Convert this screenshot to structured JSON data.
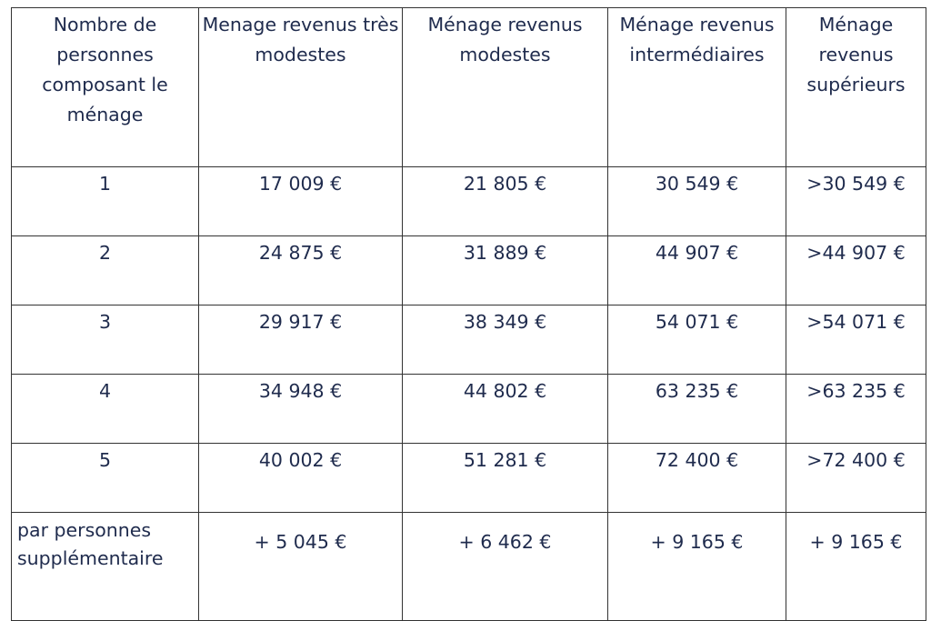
{
  "table": {
    "headers": [
      "Nombre de personnes composant le ménage",
      "Menage revenus très modestes",
      "Ménage revenus modestes",
      "Ménage revenus intermédiaires",
      "Ménage revenus supérieurs"
    ],
    "rows": [
      [
        "1",
        "17 009 €",
        "21 805 €",
        "30 549 €",
        ">30 549 €"
      ],
      [
        "2",
        "24 875 €",
        "31 889 €",
        "44 907 €",
        ">44 907 €"
      ],
      [
        "3",
        "29 917 €",
        "38 349 €",
        "54 071 €",
        ">54 071 €"
      ],
      [
        "4",
        "34 948 €",
        "44 802 €",
        "63 235 €",
        ">63 235 €"
      ],
      [
        "5",
        "40 002 €",
        "51 281 €",
        "72 400 €",
        ">72 400 €"
      ],
      [
        "par personnes supplémentaire",
        "+ 5 045 €",
        "+ 6 462 €",
        "+ 9 165 €",
        "+ 9 165 €"
      ]
    ]
  }
}
